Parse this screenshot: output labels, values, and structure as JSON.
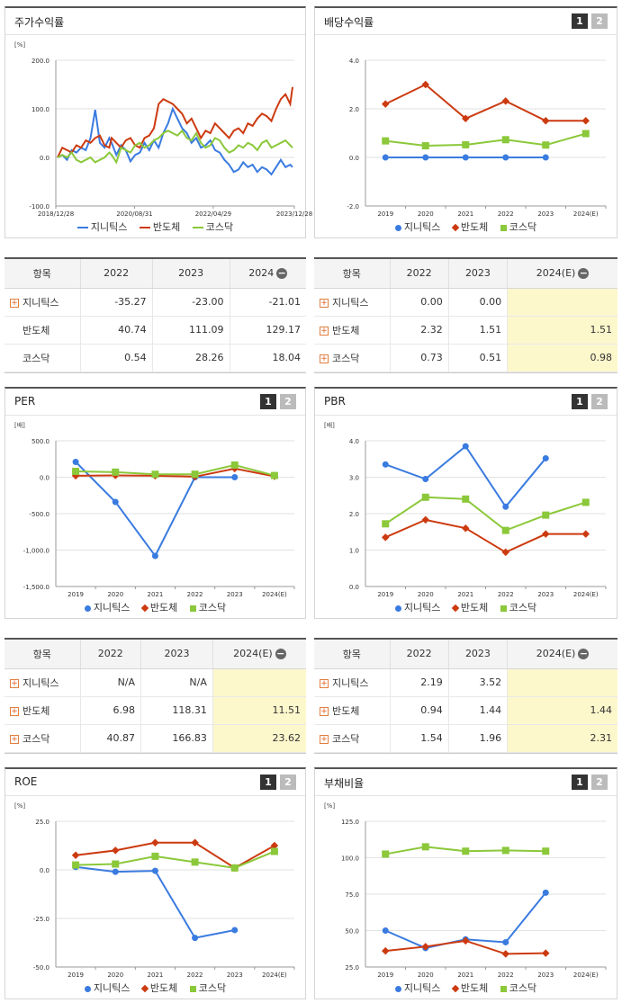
{
  "colors": {
    "s1": "#3a7be0",
    "s2": "#cc3a10",
    "s3": "#8bc83a"
  },
  "pager": [
    "1",
    "2"
  ],
  "panels": {
    "stock": {
      "title": "주가수익률",
      "unit": "[%]",
      "legend": [
        "지니틱스",
        "반도체",
        "코스닥"
      ]
    },
    "dividend": {
      "title": "배당수익률",
      "unit": "",
      "legend": [
        "지니틱스",
        "반도체",
        "코스닥"
      ]
    },
    "per": {
      "title": "PER",
      "unit": "[배]",
      "legend": [
        "지니틱스",
        "반도체",
        "코스닥"
      ]
    },
    "pbr": {
      "title": "PBR",
      "unit": "[배]",
      "legend": [
        "지니틱스",
        "반도체",
        "코스닥"
      ]
    },
    "roe": {
      "title": "ROE",
      "unit": "[%]",
      "legend": [
        "지니틱스",
        "반도체",
        "코스닥"
      ]
    },
    "debt": {
      "title": "부채비율",
      "unit": "[%]",
      "legend": [
        "지니틱스",
        "반도체",
        "코스닥"
      ]
    }
  },
  "tables": {
    "stock": {
      "head": [
        "항목",
        "2022",
        "2023",
        "2024"
      ],
      "rows": [
        {
          "label": "지니틱스",
          "plus": true,
          "v": [
            "-35.27",
            "-23.00",
            "-21.01"
          ]
        },
        {
          "label": "반도체",
          "plus": false,
          "v": [
            "40.74",
            "111.09",
            "129.17"
          ]
        },
        {
          "label": "코스닥",
          "plus": false,
          "v": [
            "0.54",
            "28.26",
            "18.04"
          ]
        }
      ]
    },
    "dividend": {
      "head": [
        "항목",
        "2022",
        "2023",
        "2024(E)"
      ],
      "rows": [
        {
          "label": "지니틱스",
          "plus": true,
          "v": [
            "0.00",
            "0.00",
            ""
          ]
        },
        {
          "label": "반도체",
          "plus": true,
          "v": [
            "2.32",
            "1.51",
            "1.51"
          ]
        },
        {
          "label": "코스닥",
          "plus": true,
          "v": [
            "0.73",
            "0.51",
            "0.98"
          ]
        }
      ]
    },
    "per": {
      "head": [
        "항목",
        "2022",
        "2023",
        "2024(E)"
      ],
      "rows": [
        {
          "label": "지니틱스",
          "plus": true,
          "v": [
            "N/A",
            "N/A",
            ""
          ]
        },
        {
          "label": "반도체",
          "plus": true,
          "v": [
            "6.98",
            "118.31",
            "11.51"
          ]
        },
        {
          "label": "코스닥",
          "plus": true,
          "v": [
            "40.87",
            "166.83",
            "23.62"
          ]
        }
      ]
    },
    "pbr": {
      "head": [
        "항목",
        "2022",
        "2023",
        "2024(E)"
      ],
      "rows": [
        {
          "label": "지니틱스",
          "plus": true,
          "v": [
            "2.19",
            "3.52",
            ""
          ]
        },
        {
          "label": "반도체",
          "plus": true,
          "v": [
            "0.94",
            "1.44",
            "1.44"
          ]
        },
        {
          "label": "코스닥",
          "plus": true,
          "v": [
            "1.54",
            "1.96",
            "2.31"
          ]
        }
      ]
    }
  },
  "chart_data": [
    {
      "id": "stock",
      "type": "line",
      "title": "주가수익률",
      "ylabel": "[%]",
      "ylim": [
        -100,
        200
      ],
      "yticks": [
        "200.0",
        "100.0",
        "0.0",
        "-100.0"
      ],
      "xticks": [
        "2018/12/28",
        "2020/08/31",
        "2022/04/29",
        "2023/12/28"
      ],
      "x": [
        0,
        2,
        4,
        6,
        8,
        10,
        12,
        14,
        16,
        18,
        20,
        22,
        23,
        25,
        27,
        29,
        31,
        33,
        35,
        37,
        39,
        41,
        43,
        45,
        47,
        49,
        51,
        53,
        55,
        57,
        59,
        61,
        63,
        65,
        67,
        69,
        71,
        73,
        75,
        77,
        79,
        81,
        83,
        85,
        87,
        89,
        91,
        93,
        95,
        97,
        99,
        100
      ],
      "series": [
        {
          "name": "지니틱스",
          "values": [
            0,
            5,
            -5,
            15,
            10,
            20,
            15,
            40,
            98,
            30,
            20,
            40,
            30,
            5,
            25,
            15,
            -8,
            5,
            10,
            30,
            15,
            35,
            20,
            50,
            70,
            100,
            80,
            60,
            50,
            30,
            40,
            20,
            25,
            35,
            15,
            10,
            -5,
            -15,
            -30,
            -25,
            -10,
            -20,
            -15,
            -30,
            -20,
            -25,
            -35,
            -20,
            -5,
            -20,
            -15,
            -20
          ]
        },
        {
          "name": "반도체",
          "values": [
            0,
            20,
            15,
            10,
            25,
            20,
            35,
            30,
            40,
            45,
            25,
            20,
            40,
            30,
            20,
            35,
            40,
            25,
            20,
            40,
            45,
            60,
            110,
            120,
            115,
            110,
            100,
            90,
            70,
            80,
            60,
            40,
            55,
            50,
            70,
            60,
            50,
            40,
            55,
            60,
            50,
            70,
            65,
            80,
            90,
            85,
            75,
            100,
            120,
            130,
            110,
            145
          ]
        },
        {
          "name": "코스닥",
          "values": [
            0,
            5,
            0,
            10,
            -5,
            -10,
            -5,
            0,
            -10,
            -5,
            0,
            10,
            5,
            -10,
            20,
            15,
            10,
            25,
            30,
            20,
            25,
            35,
            40,
            50,
            55,
            50,
            45,
            55,
            40,
            35,
            50,
            30,
            20,
            25,
            40,
            35,
            20,
            10,
            15,
            25,
            20,
            30,
            25,
            15,
            30,
            35,
            20,
            25,
            30,
            35,
            25,
            20
          ]
        }
      ]
    },
    {
      "id": "dividend",
      "type": "line",
      "title": "배당수익률",
      "ylim": [
        -2,
        4
      ],
      "yticks": [
        "4.0",
        "2.0",
        "0.0",
        "-2.0"
      ],
      "categories": [
        "2019",
        "2020",
        "2021",
        "2022",
        "2023",
        "2024(E)"
      ],
      "series": [
        {
          "name": "지니틱스",
          "values": [
            0.0,
            0.0,
            0.0,
            0.0,
            0.0,
            null
          ]
        },
        {
          "name": "반도체",
          "values": [
            2.2,
            3.0,
            1.6,
            2.32,
            1.51,
            1.51
          ]
        },
        {
          "name": "코스닥",
          "values": [
            0.68,
            0.48,
            0.52,
            0.73,
            0.51,
            0.98
          ]
        }
      ]
    },
    {
      "id": "per",
      "type": "line",
      "title": "PER",
      "ylabel": "[배]",
      "ylim": [
        -1500,
        500
      ],
      "yticks": [
        "500.0",
        "0.0",
        "-500.0",
        "-1,000.0",
        "-1,500.0"
      ],
      "categories": [
        "2019",
        "2020",
        "2021",
        "2022",
        "2023",
        "2024(E)"
      ],
      "series": [
        {
          "name": "지니틱스",
          "values": [
            210,
            -340,
            -1080,
            0,
            0,
            null
          ]
        },
        {
          "name": "반도체",
          "values": [
            20,
            25,
            20,
            6.98,
            118.31,
            11.51
          ]
        },
        {
          "name": "코스닥",
          "values": [
            80,
            70,
            40,
            40.87,
            166.83,
            23.62
          ]
        }
      ]
    },
    {
      "id": "pbr",
      "type": "line",
      "title": "PBR",
      "ylabel": "[배]",
      "ylim": [
        0,
        4
      ],
      "yticks": [
        "4.0",
        "3.0",
        "2.0",
        "1.0",
        "0.0"
      ],
      "categories": [
        "2019",
        "2020",
        "2021",
        "2022",
        "2023",
        "2024(E)"
      ],
      "series": [
        {
          "name": "지니틱스",
          "values": [
            3.35,
            2.95,
            3.85,
            2.19,
            3.52,
            null
          ]
        },
        {
          "name": "반도체",
          "values": [
            1.35,
            1.83,
            1.6,
            0.94,
            1.44,
            1.44
          ]
        },
        {
          "name": "코스닥",
          "values": [
            1.72,
            2.45,
            2.4,
            1.54,
            1.96,
            2.31
          ]
        }
      ]
    },
    {
      "id": "roe",
      "type": "line",
      "title": "ROE",
      "ylabel": "[%]",
      "ylim": [
        -50,
        25
      ],
      "yticks": [
        "25.0",
        "0.0",
        "-25.0",
        "-50.0"
      ],
      "categories": [
        "2019",
        "2020",
        "2021",
        "2022",
        "2023",
        "2024(E)"
      ],
      "series": [
        {
          "name": "지니틱스",
          "values": [
            1.5,
            -1,
            -0.5,
            -35,
            -31,
            null
          ]
        },
        {
          "name": "반도체",
          "values": [
            7.5,
            10,
            14,
            14,
            1,
            12.5
          ]
        },
        {
          "name": "코스닥",
          "values": [
            2.5,
            3,
            7,
            4,
            1,
            9.5
          ]
        }
      ]
    },
    {
      "id": "debt",
      "type": "line",
      "title": "부채비율",
      "ylabel": "[%]",
      "ylim": [
        25,
        125
      ],
      "yticks": [
        "125.0",
        "100.0",
        "75.0",
        "50.0",
        "25.0"
      ],
      "categories": [
        "2019",
        "2020",
        "2021",
        "2022",
        "2023",
        "2024(E)"
      ],
      "series": [
        {
          "name": "지니틱스",
          "values": [
            50,
            38,
            44,
            42,
            76,
            null
          ]
        },
        {
          "name": "반도체",
          "values": [
            36,
            39,
            43,
            34,
            34.5,
            null
          ]
        },
        {
          "name": "코스닥",
          "values": [
            102.5,
            107.5,
            104.5,
            105,
            104.5,
            null
          ]
        }
      ]
    }
  ]
}
